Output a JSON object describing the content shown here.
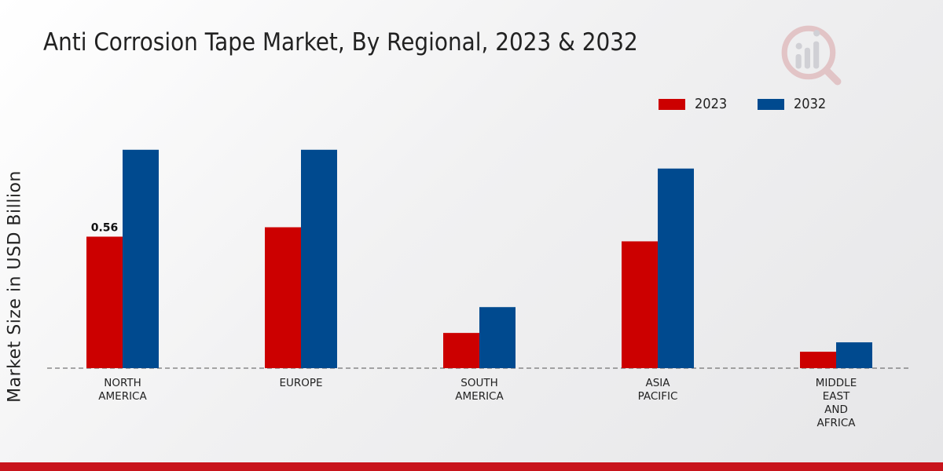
{
  "chart_data": {
    "type": "bar",
    "title": "Anti Corrosion Tape Market, By Regional, 2023 & 2032",
    "xlabel": "",
    "ylabel": "Market Size in USD Billion",
    "ylim": [
      0,
      1.2
    ],
    "categories": [
      [
        "NORTH",
        "AMERICA"
      ],
      [
        "EUROPE"
      ],
      [
        "SOUTH",
        "AMERICA"
      ],
      [
        "ASIA",
        "PACIFIC"
      ],
      [
        "MIDDLE",
        "EAST",
        "AND",
        "AFRICA"
      ]
    ],
    "series": [
      {
        "name": "2023",
        "color": "#cc0000",
        "values": [
          0.56,
          0.6,
          0.15,
          0.54,
          0.07
        ]
      },
      {
        "name": "2032",
        "color": "#004a8f",
        "values": [
          0.93,
          0.93,
          0.26,
          0.85,
          0.11
        ]
      }
    ],
    "data_labels": [
      {
        "series": 0,
        "index": 0,
        "text": "0.56"
      }
    ],
    "legend_position": "top-right",
    "grid": false
  }
}
